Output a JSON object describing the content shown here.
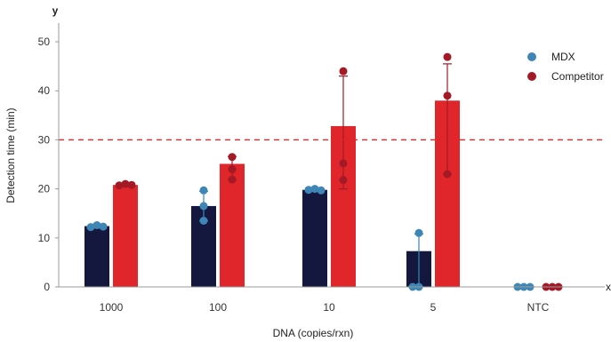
{
  "chart_data": {
    "type": "bar",
    "title": "",
    "xlabel": "DNA (copies/rxn)",
    "ylabel": "Detection time (min)",
    "y_axis_letter": "y",
    "x_axis_letter": "x",
    "ylim": [
      0,
      52
    ],
    "yticks": [
      0,
      10,
      20,
      30,
      40,
      50
    ],
    "categories": [
      "1000",
      "100",
      "10",
      "5",
      "NTC"
    ],
    "reference_line": {
      "y": 30,
      "style": "dashed",
      "color": "#e0262b"
    },
    "legend": {
      "position": "top-right"
    },
    "series": [
      {
        "name": "MDX",
        "color": "#14183f",
        "marker_color": "#3e86b5",
        "values": [
          12.4,
          16.5,
          19.8,
          7.3,
          0
        ],
        "error_low": [
          12.0,
          13.5,
          19.5,
          0,
          0
        ],
        "error_high": [
          12.8,
          19.5,
          20.1,
          10.8,
          0
        ],
        "points": [
          [
            12.2,
            12.6,
            12.3
          ],
          [
            13.5,
            16.5,
            19.7
          ],
          [
            19.8,
            20.0,
            19.7
          ],
          [
            0,
            0,
            11.0
          ],
          [
            0,
            0,
            0
          ]
        ]
      },
      {
        "name": "Competitor",
        "color": "#e0262b",
        "marker_color": "#a31a26",
        "values": [
          20.8,
          25.1,
          32.8,
          38.0,
          0
        ],
        "error_low": [
          20.6,
          22.0,
          20.0,
          23.0,
          0
        ],
        "error_high": [
          21.0,
          26.6,
          43.0,
          45.5,
          0
        ],
        "points": [
          [
            20.7,
            21.0,
            20.8
          ],
          [
            21.9,
            24.0,
            26.5
          ],
          [
            21.8,
            25.2,
            44.0
          ],
          [
            23.0,
            39.0,
            46.9
          ],
          [
            0,
            0,
            0
          ]
        ]
      }
    ]
  }
}
